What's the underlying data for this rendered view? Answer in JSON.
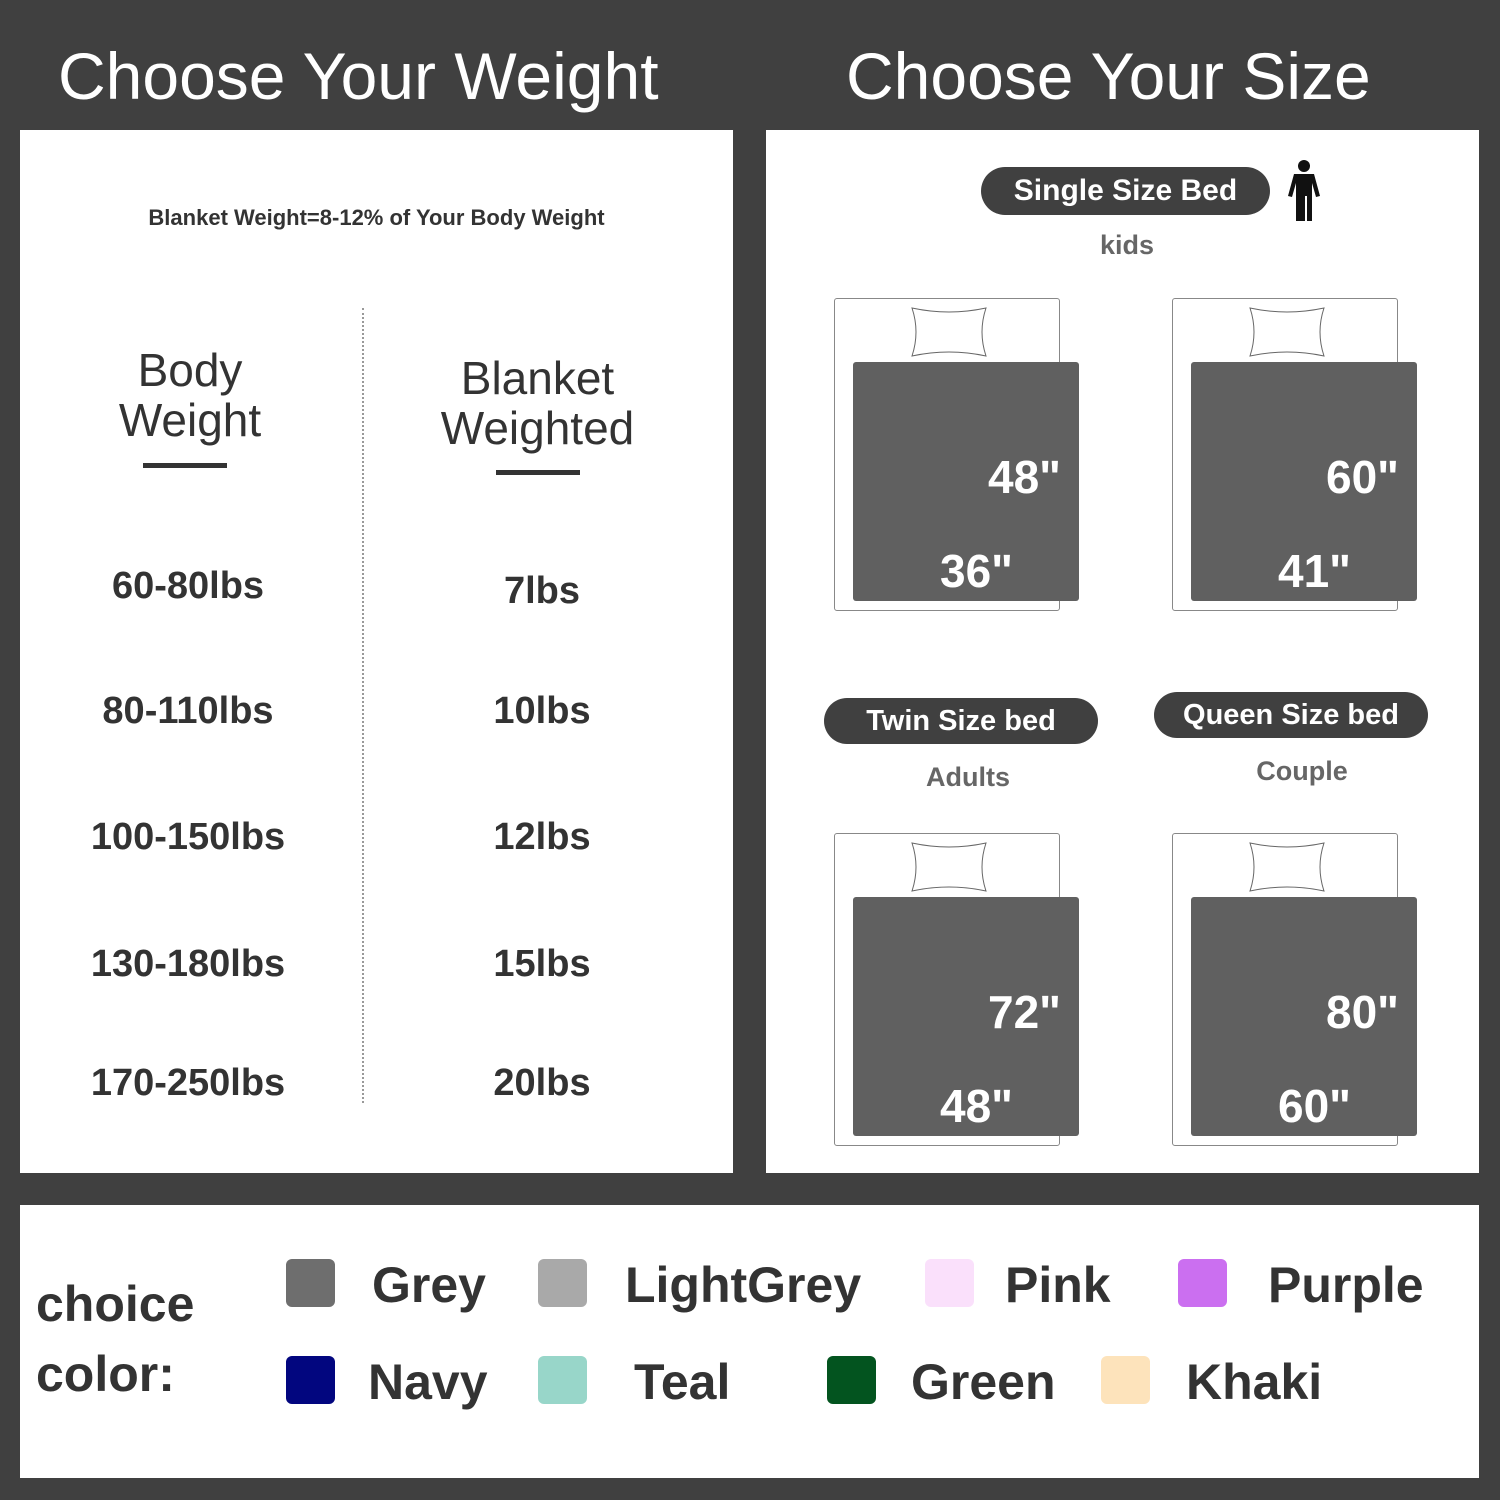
{
  "weight": {
    "title": "Choose Your Weight",
    "note": "Blanket Weight=8-12% of Your Body Weight",
    "col1": "Body Weight",
    "col2": "Blanket Weighted",
    "rows": [
      {
        "body": "60-80lbs",
        "blanket": "7lbs"
      },
      {
        "body": "80-110lbs",
        "blanket": "10lbs"
      },
      {
        "body": "100-150lbs",
        "blanket": "12lbs"
      },
      {
        "body": "130-180lbs",
        "blanket": "15lbs"
      },
      {
        "body": "170-250lbs",
        "blanket": "20lbs"
      }
    ]
  },
  "size": {
    "title": "Choose Your Size",
    "single": {
      "label": "Single Size Bed",
      "sub": "kids",
      "icon": "person-icon"
    },
    "twin": {
      "label": "Twin Size bed",
      "sub": "Adults"
    },
    "queen": {
      "label": "Queen Size bed",
      "sub": "Couple"
    },
    "beds": [
      {
        "length": "48\"",
        "width": "36\""
      },
      {
        "length": "60\"",
        "width": "41\""
      },
      {
        "length": "72\"",
        "width": "48\""
      },
      {
        "length": "80\"",
        "width": "60\""
      }
    ]
  },
  "colors": {
    "label_line1": "choice",
    "label_line2": "color:",
    "items": [
      {
        "name": "Grey",
        "hex": "#6e6e6e"
      },
      {
        "name": "LightGrey",
        "hex": "#a9a9a9"
      },
      {
        "name": "Pink",
        "hex": "#fae0fb"
      },
      {
        "name": "Purple",
        "hex": "#cb6ff0"
      },
      {
        "name": "Navy",
        "hex": "#02067f"
      },
      {
        "name": "Teal",
        "hex": "#98d6c9"
      },
      {
        "name": "Green",
        "hex": "#03541f"
      },
      {
        "name": "Khaki",
        "hex": "#fde3bb"
      }
    ]
  }
}
